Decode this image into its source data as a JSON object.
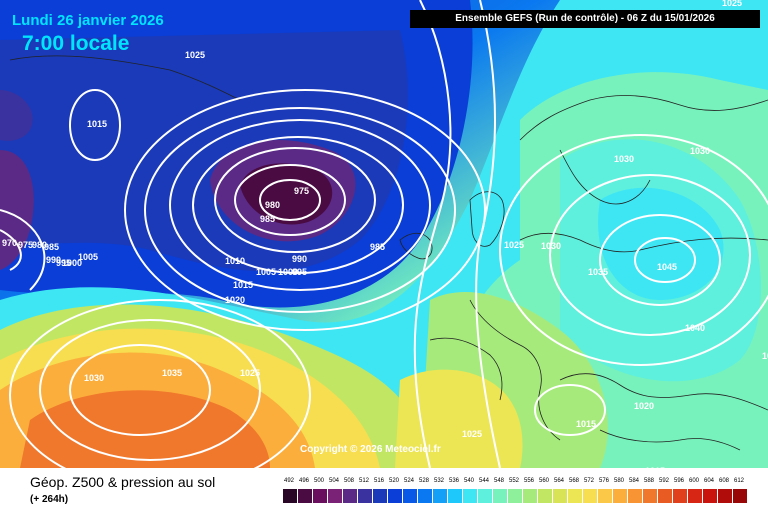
{
  "header": {
    "date": "Lundi 26 janvier 2026",
    "local_time": "7:00 locale",
    "model_info": "Ensemble GEFS  (Run de contrôle)  -  06 Z du 15/01/2026"
  },
  "copyright": "Copyright © 2026 Meteociel.fr",
  "footer": {
    "title": "Géop. Z500 & pression au sol",
    "lead_time": "(+ 264h)"
  },
  "isobar_labels": [
    "1025",
    "1025",
    "1015",
    "975",
    "980",
    "985",
    "985",
    "990",
    "995",
    "1000",
    "1005",
    "1010",
    "1015",
    "1020",
    "970",
    "975",
    "980",
    "985",
    "990",
    "995",
    "1000",
    "1005",
    "1030",
    "1035",
    "1025",
    "1025",
    "1030",
    "1035",
    "1030",
    "1030",
    "1045",
    "1040",
    "1020",
    "1015",
    "1015",
    "1025",
    "1005"
  ],
  "color_scale": {
    "labels": [
      "492",
      "496",
      "500",
      "504",
      "508",
      "512",
      "516",
      "520",
      "524",
      "528",
      "532",
      "536",
      "540",
      "544",
      "548",
      "552",
      "556",
      "560",
      "564",
      "568",
      "572",
      "576",
      "580",
      "584",
      "588",
      "592",
      "596",
      "600",
      "604",
      "608",
      "612"
    ],
    "colors": [
      "#2a0626",
      "#4a0a42",
      "#6a0e5e",
      "#7a2276",
      "#5a2a86",
      "#3a329e",
      "#1a3aba",
      "#0a3ed6",
      "#0a58e6",
      "#0a78f0",
      "#14a0f6",
      "#1ec8fa",
      "#3ee6f4",
      "#5ef0dc",
      "#78f2bc",
      "#8ef09a",
      "#a6ea7c",
      "#c0e664",
      "#d8e456",
      "#ece654",
      "#f6de50",
      "#fcc848",
      "#fcae3c",
      "#f89434",
      "#f0782c",
      "#e85c24",
      "#e0401c",
      "#d82614",
      "#c8140c",
      "#b00c0a",
      "#980608"
    ]
  }
}
